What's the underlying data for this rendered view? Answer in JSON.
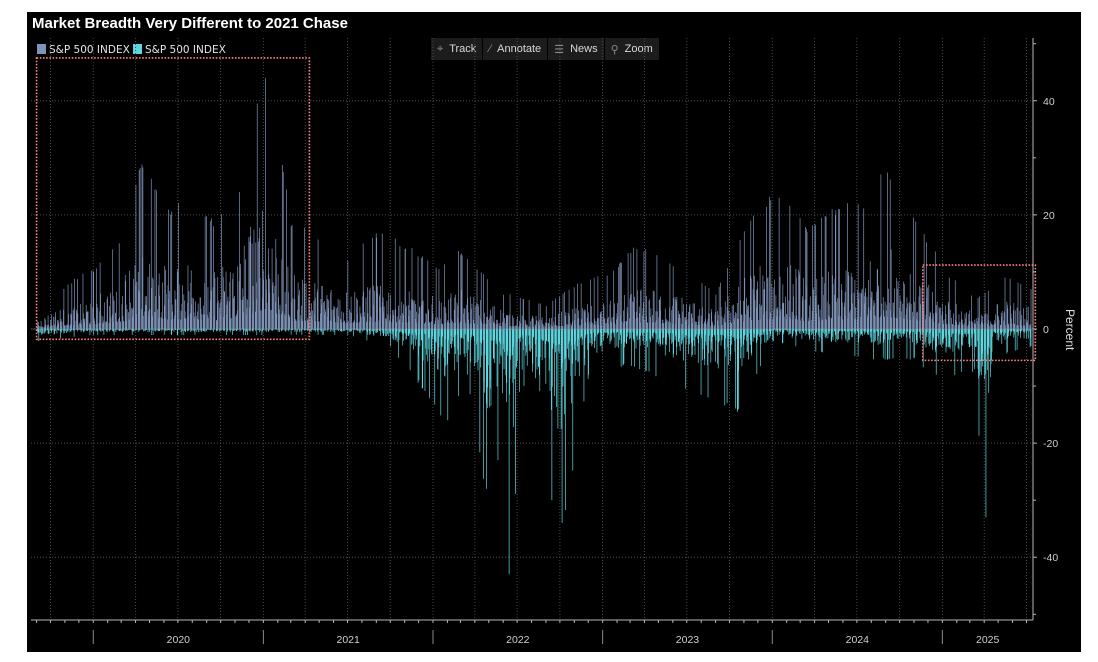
{
  "title": "Market Breadth Very Different to 2021 Chase",
  "legend": [
    {
      "label": "S&P 500 INDEX",
      "color": "#7f93b8"
    },
    {
      "label": "S&P 500 INDEX",
      "color": "#5fd7e0"
    }
  ],
  "toolbar": [
    {
      "label": "Track",
      "icon": "crosshair-icon"
    },
    {
      "label": "Annotate",
      "icon": "pencil-icon"
    },
    {
      "label": "News",
      "icon": "news-icon"
    },
    {
      "label": "Zoom",
      "icon": "magnifier-icon"
    }
  ],
  "chart_data": {
    "type": "bar",
    "title": "Market Breadth Very Different to 2021 Chase",
    "ylabel": "Percent",
    "ylim": [
      -51,
      51
    ],
    "yticks": [
      -40,
      -20,
      0,
      20,
      40
    ],
    "x_labels": [
      "2020",
      "2021",
      "2022",
      "2023",
      "2024",
      "2025"
    ],
    "x_range": [
      "2019-08-20",
      "2025-07-15"
    ],
    "grid": true,
    "legend_position": "top-left",
    "series": [
      {
        "name": "S&P 500 INDEX",
        "color": "#7f93b8",
        "description_points": [
          [
            "2019-09-01",
            3
          ],
          [
            "2019-11-15",
            8
          ],
          [
            "2020-01-01",
            10
          ],
          [
            "2020-03-01",
            15
          ],
          [
            "2020-04-10",
            28
          ],
          [
            "2020-06-15",
            20
          ],
          [
            "2020-08-01",
            22
          ],
          [
            "2020-09-15",
            18
          ],
          [
            "2020-11-10",
            24
          ],
          [
            "2021-01-05",
            44
          ],
          [
            "2021-03-01",
            18
          ],
          [
            "2021-05-01",
            15
          ],
          [
            "2021-07-01",
            12
          ],
          [
            "2021-09-01",
            16
          ],
          [
            "2021-11-01",
            14
          ],
          [
            "2022-01-15",
            10
          ],
          [
            "2022-03-01",
            13
          ],
          [
            "2022-06-01",
            6
          ],
          [
            "2022-09-01",
            4
          ],
          [
            "2022-11-15",
            8
          ],
          [
            "2023-01-15",
            9
          ],
          [
            "2023-03-15",
            14
          ],
          [
            "2023-06-01",
            11
          ],
          [
            "2023-09-01",
            6
          ],
          [
            "2023-11-15",
            19
          ],
          [
            "2024-01-15",
            23
          ],
          [
            "2024-03-15",
            17
          ],
          [
            "2024-05-15",
            20
          ],
          [
            "2024-07-15",
            21
          ],
          [
            "2024-09-01",
            27
          ],
          [
            "2024-11-10",
            17
          ],
          [
            "2025-01-15",
            9
          ],
          [
            "2025-03-15",
            5
          ],
          [
            "2025-05-15",
            9
          ],
          [
            "2025-07-10",
            7
          ]
        ]
      },
      {
        "name": "S&P 500 INDEX",
        "color": "#5fd7e0",
        "description_points": [
          [
            "2019-09-01",
            -2
          ],
          [
            "2020-01-01",
            -1
          ],
          [
            "2020-06-01",
            -1
          ],
          [
            "2021-03-01",
            -1
          ],
          [
            "2021-07-01",
            -1
          ],
          [
            "2021-10-01",
            -3
          ],
          [
            "2021-12-01",
            -9
          ],
          [
            "2022-02-01",
            -16
          ],
          [
            "2022-03-15",
            -8
          ],
          [
            "2022-04-25",
            -28
          ],
          [
            "2022-05-20",
            -23
          ],
          [
            "2022-06-13",
            -43
          ],
          [
            "2022-07-15",
            -10
          ],
          [
            "2022-09-13",
            -30
          ],
          [
            "2022-10-05",
            -34
          ],
          [
            "2022-12-01",
            -8
          ],
          [
            "2023-02-15",
            -6
          ],
          [
            "2023-04-01",
            -7
          ],
          [
            "2023-08-15",
            -12
          ],
          [
            "2023-09-25",
            -13
          ],
          [
            "2023-10-20",
            -14
          ],
          [
            "2024-01-01",
            -2
          ],
          [
            "2024-04-15",
            -4
          ],
          [
            "2024-08-05",
            -5
          ],
          [
            "2024-11-01",
            -5
          ],
          [
            "2024-12-18",
            -8
          ],
          [
            "2025-03-10",
            -7
          ],
          [
            "2025-04-04",
            -33
          ],
          [
            "2025-04-20",
            -6
          ],
          [
            "2025-05-20",
            -4
          ],
          [
            "2025-07-10",
            -3
          ]
        ]
      }
    ],
    "annotations": [
      {
        "shape": "dotted-rectangle",
        "color": "#ff8080",
        "x_from": "2019-09-01",
        "x_to": "2021-04-10",
        "y_from": -1.8,
        "y_to": 47.5
      },
      {
        "shape": "dotted-rectangle",
        "color": "#ff8080",
        "x_from": "2024-11-20",
        "x_to": "2025-07-20",
        "y_from": -5.5,
        "y_to": 11.2
      }
    ]
  }
}
